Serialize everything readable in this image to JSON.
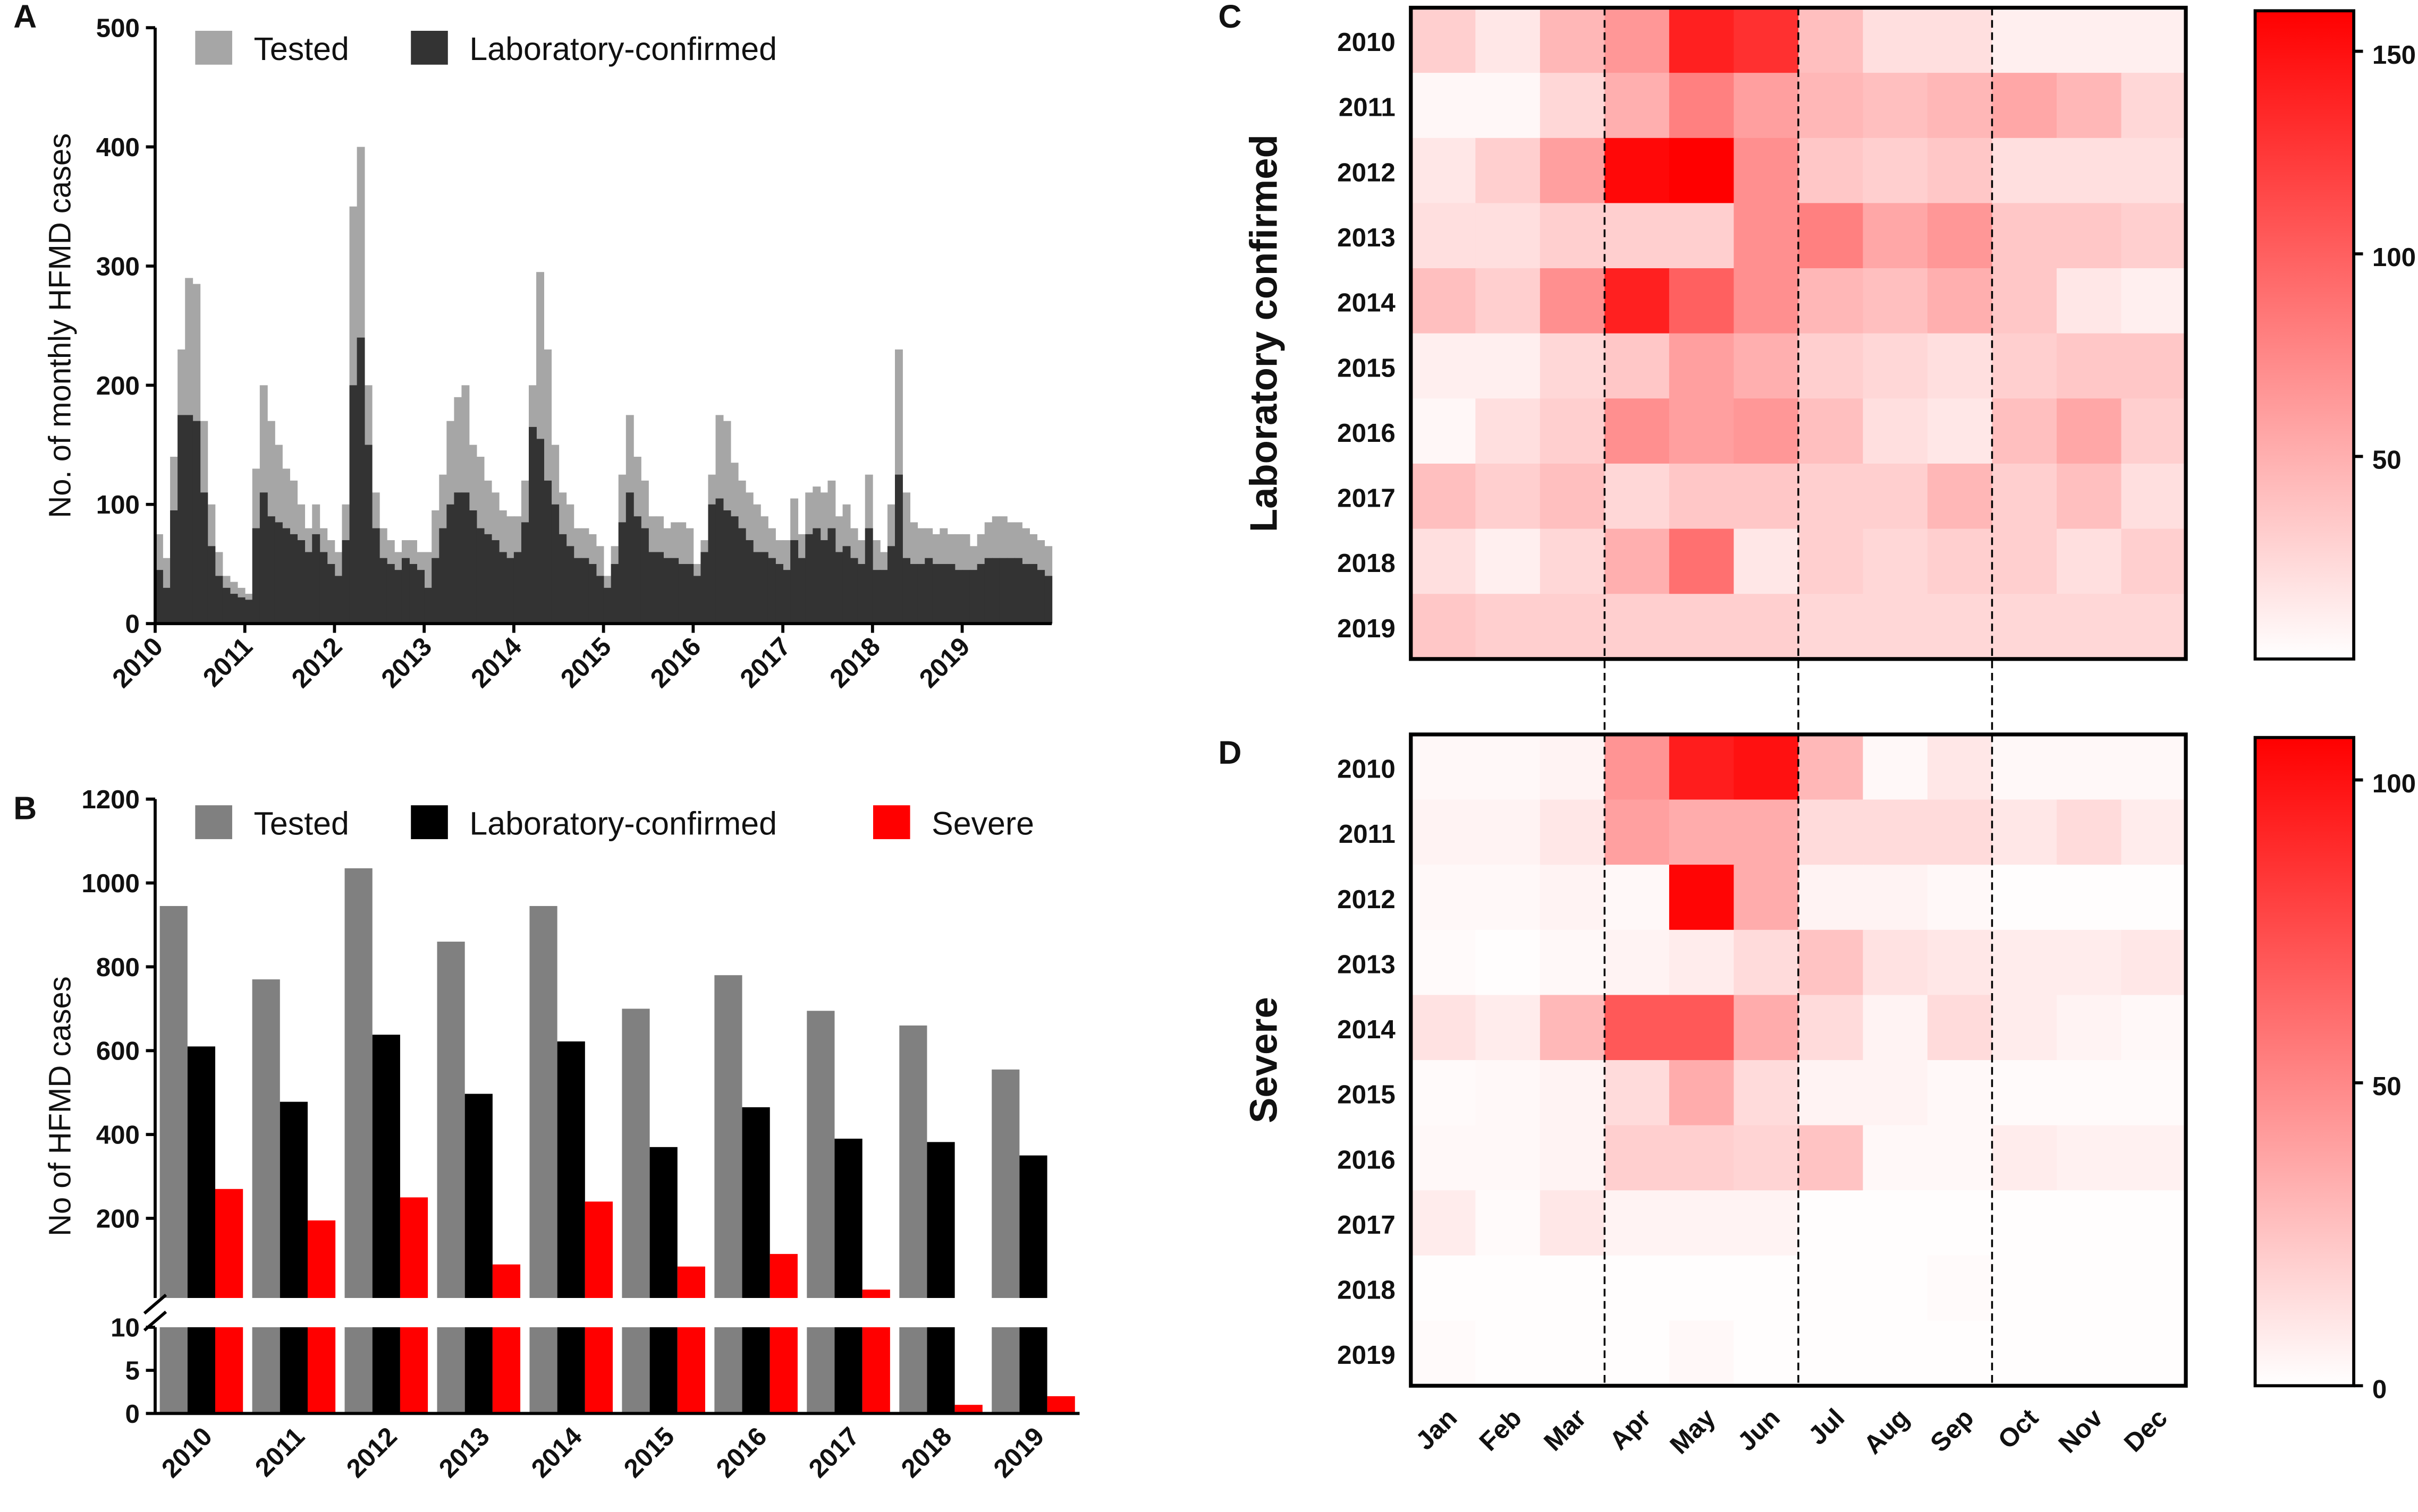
{
  "chart_data": [
    {
      "type": "bar",
      "barmode": "overlay",
      "panel": "A",
      "ylabel": "No. of monthly HFMD cases",
      "xlim": [
        2010,
        2020
      ],
      "xticks": [
        2010,
        2011,
        2012,
        2013,
        2014,
        2015,
        2016,
        2017,
        2018,
        2019
      ],
      "ylim": [
        0,
        500
      ],
      "yticks": [
        0,
        100,
        200,
        300,
        400,
        500
      ],
      "series": [
        {
          "name": "Tested",
          "color": "#a6a6a6",
          "values": [
            75,
            55,
            140,
            230,
            290,
            285,
            170,
            100,
            60,
            40,
            35,
            30,
            25,
            130,
            200,
            170,
            150,
            130,
            120,
            100,
            80,
            100,
            80,
            70,
            60,
            100,
            350,
            400,
            200,
            110,
            80,
            70,
            60,
            70,
            70,
            60,
            60,
            95,
            125,
            170,
            190,
            200,
            150,
            140,
            120,
            110,
            95,
            90,
            90,
            120,
            200,
            295,
            230,
            150,
            110,
            100,
            80,
            80,
            75,
            65,
            40,
            65,
            125,
            175,
            140,
            120,
            90,
            90,
            80,
            85,
            85,
            80,
            50,
            70,
            125,
            175,
            170,
            135,
            120,
            110,
            100,
            90,
            80,
            70,
            70,
            105,
            75,
            110,
            115,
            110,
            120,
            90,
            100,
            80,
            70,
            125,
            70,
            60,
            100,
            230,
            110,
            85,
            80,
            80,
            75,
            80,
            75,
            75,
            75,
            65,
            75,
            85,
            90,
            90,
            85,
            85,
            80,
            75,
            70,
            65
          ]
        },
        {
          "name": "Laboratory-confirmed",
          "color": "#333333",
          "values": [
            45,
            30,
            95,
            175,
            175,
            170,
            110,
            65,
            40,
            30,
            25,
            22,
            20,
            80,
            110,
            90,
            85,
            80,
            75,
            70,
            60,
            75,
            60,
            50,
            40,
            70,
            200,
            240,
            150,
            80,
            55,
            50,
            45,
            55,
            50,
            45,
            30,
            55,
            80,
            100,
            110,
            110,
            95,
            80,
            75,
            70,
            60,
            55,
            60,
            85,
            165,
            155,
            120,
            100,
            75,
            65,
            55,
            55,
            50,
            40,
            30,
            50,
            85,
            110,
            90,
            80,
            60,
            60,
            55,
            55,
            50,
            50,
            40,
            60,
            100,
            105,
            95,
            90,
            80,
            70,
            60,
            60,
            55,
            50,
            45,
            70,
            55,
            75,
            80,
            70,
            80,
            60,
            65,
            55,
            50,
            80,
            45,
            45,
            65,
            125,
            55,
            50,
            50,
            55,
            50,
            50,
            50,
            45,
            45,
            45,
            50,
            55,
            55,
            55,
            55,
            55,
            50,
            50,
            45,
            40
          ]
        }
      ]
    },
    {
      "type": "bar",
      "barmode": "group",
      "panel": "B",
      "ylabel": "No of HFMD cases",
      "categories": [
        "2010",
        "2011",
        "2012",
        "2013",
        "2014",
        "2015",
        "2016",
        "2017",
        "2018",
        "2019"
      ],
      "ylim": [
        10,
        1200
      ],
      "yticks": [
        200,
        400,
        600,
        800,
        1000,
        1200
      ],
      "ylim_lower": [
        0,
        10
      ],
      "yticks_lower": [
        0,
        5,
        10
      ],
      "series": [
        {
          "name": "Tested",
          "color": "#808080",
          "values": [
            945,
            770,
            1035,
            860,
            945,
            700,
            780,
            695,
            660,
            555
          ]
        },
        {
          "name": "Laboratory-confirmed",
          "color": "#000000",
          "values": [
            610,
            478,
            638,
            497,
            622,
            370,
            465,
            390,
            382,
            350
          ]
        },
        {
          "name": "Severe",
          "color": "#ff0000",
          "values": [
            270,
            195,
            250,
            90,
            240,
            85,
            115,
            30,
            1,
            2
          ]
        }
      ]
    },
    {
      "type": "heatmap",
      "panel": "C",
      "ylabel": "Laboratory confirmed",
      "color": "#ff0000",
      "categories": [
        "Jan",
        "Feb",
        "Mar",
        "Apr",
        "May",
        "Jun",
        "Jul",
        "Aug",
        "Sep",
        "Oct",
        "Nov",
        "Dec"
      ],
      "rows": [
        "2010",
        "2011",
        "2012",
        "2013",
        "2014",
        "2015",
        "2016",
        "2017",
        "2018",
        "2019"
      ],
      "zlim": [
        0,
        160
      ],
      "zticks": [
        50,
        100,
        150
      ],
      "values": [
        [
          30,
          15,
          45,
          65,
          140,
          130,
          40,
          20,
          20,
          10,
          10,
          10
        ],
        [
          5,
          5,
          25,
          50,
          80,
          60,
          45,
          40,
          45,
          55,
          45,
          25
        ],
        [
          15,
          30,
          60,
          155,
          160,
          70,
          35,
          30,
          35,
          20,
          20,
          20
        ],
        [
          20,
          20,
          30,
          30,
          30,
          70,
          80,
          55,
          65,
          35,
          35,
          30
        ],
        [
          40,
          30,
          70,
          140,
          100,
          70,
          45,
          40,
          50,
          35,
          15,
          10
        ],
        [
          10,
          10,
          25,
          35,
          60,
          50,
          30,
          25,
          20,
          30,
          35,
          35
        ],
        [
          5,
          20,
          30,
          70,
          60,
          65,
          40,
          20,
          15,
          40,
          55,
          30
        ],
        [
          40,
          30,
          40,
          25,
          35,
          35,
          30,
          30,
          45,
          30,
          40,
          20
        ],
        [
          20,
          10,
          25,
          50,
          90,
          15,
          30,
          25,
          30,
          30,
          20,
          30
        ],
        [
          35,
          30,
          30,
          30,
          30,
          30,
          25,
          25,
          25,
          25,
          25,
          25
        ]
      ]
    },
    {
      "type": "heatmap",
      "panel": "D",
      "ylabel": "Severe",
      "color": "#ff0000",
      "categories": [
        "Jan",
        "Feb",
        "Mar",
        "Apr",
        "May",
        "Jun",
        "Jul",
        "Aug",
        "Sep",
        "Oct",
        "Nov",
        "Dec"
      ],
      "rows": [
        "2010",
        "2011",
        "2012",
        "2013",
        "2014",
        "2015",
        "2016",
        "2017",
        "2018",
        "2019"
      ],
      "zlim": [
        0,
        107
      ],
      "zticks": [
        0,
        50,
        100
      ],
      "values": [
        [
          3,
          3,
          5,
          45,
          95,
          100,
          30,
          3,
          10,
          3,
          3,
          3
        ],
        [
          5,
          5,
          10,
          40,
          35,
          35,
          15,
          15,
          15,
          10,
          15,
          8
        ],
        [
          3,
          3,
          5,
          3,
          105,
          35,
          5,
          5,
          3,
          1,
          1,
          1
        ],
        [
          2,
          1,
          3,
          5,
          8,
          15,
          25,
          12,
          10,
          8,
          8,
          10
        ],
        [
          12,
          8,
          30,
          70,
          70,
          35,
          15,
          5,
          15,
          8,
          5,
          3
        ],
        [
          2,
          3,
          5,
          15,
          35,
          15,
          5,
          5,
          3,
          2,
          2,
          2
        ],
        [
          3,
          3,
          5,
          20,
          20,
          18,
          25,
          3,
          3,
          8,
          6,
          6
        ],
        [
          8,
          2,
          10,
          5,
          5,
          5,
          1,
          1,
          1,
          1,
          1,
          1
        ],
        [
          1,
          1,
          1,
          1,
          1,
          1,
          1,
          1,
          2,
          1,
          1,
          1
        ],
        [
          2,
          1,
          1,
          1,
          3,
          1,
          1,
          1,
          1,
          1,
          1,
          1
        ]
      ]
    }
  ]
}
